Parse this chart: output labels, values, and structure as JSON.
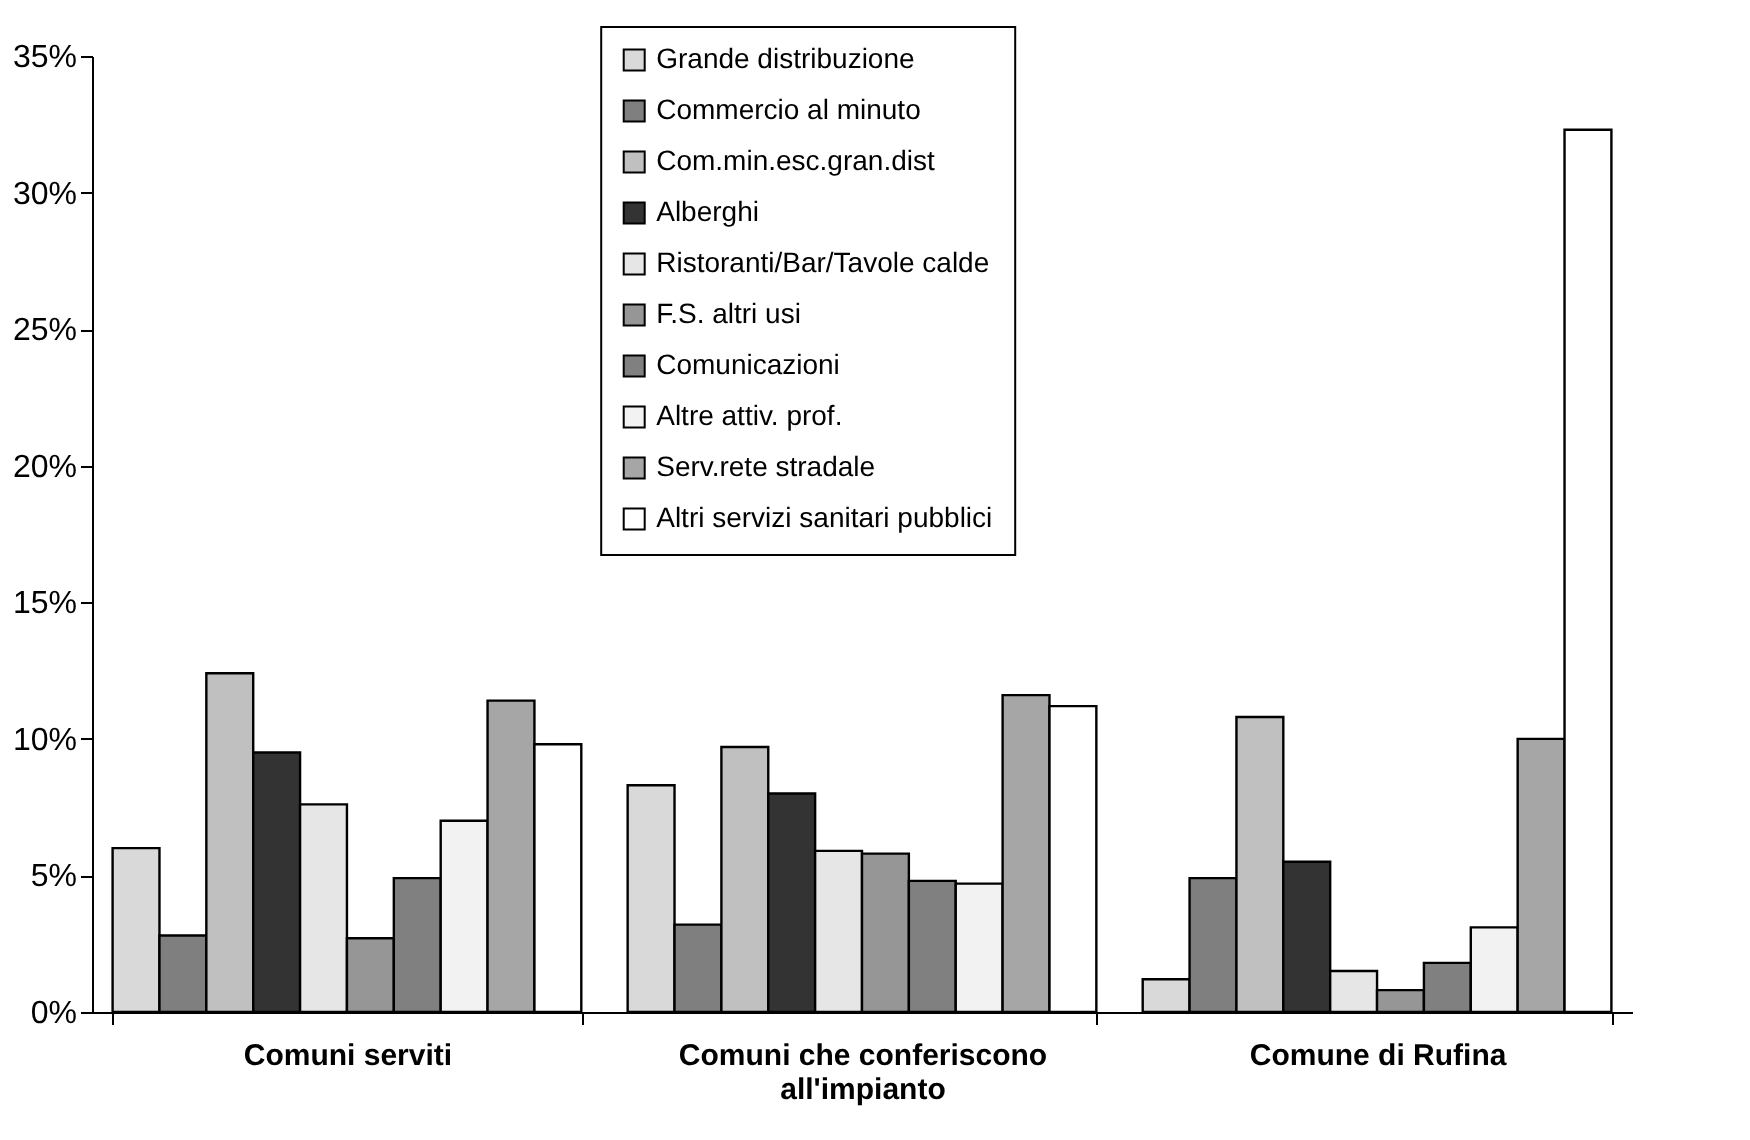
{
  "chart_data": {
    "type": "bar",
    "categories": [
      "Comuni serviti",
      "Comuni che conferiscono all'impianto",
      "Comune di Rufina"
    ],
    "series": [
      {
        "name": "Grande distribuzione",
        "color": "#d9d9d9",
        "values": [
          6.0,
          8.3,
          1.2
        ]
      },
      {
        "name": "Commercio al minuto",
        "color": "#7f7f7f",
        "values": [
          2.8,
          3.2,
          4.9
        ]
      },
      {
        "name": "Com.min.esc.gran.dist",
        "color": "#c0c0c0",
        "values": [
          12.4,
          9.7,
          10.8
        ]
      },
      {
        "name": "Alberghi",
        "color": "#333333",
        "values": [
          9.5,
          8.0,
          5.5
        ]
      },
      {
        "name": "Ristoranti/Bar/Tavole calde",
        "color": "#e6e6e6",
        "values": [
          7.6,
          5.9,
          1.5
        ]
      },
      {
        "name": "F.S. altri usi",
        "color": "#969696",
        "values": [
          2.7,
          5.8,
          0.8
        ]
      },
      {
        "name": "Comunicazioni",
        "color": "#808080",
        "values": [
          4.9,
          4.8,
          1.8
        ]
      },
      {
        "name": "Altre attiv. prof.",
        "color": "#f2f2f2",
        "values": [
          7.0,
          4.7,
          3.1
        ]
      },
      {
        "name": "Serv.rete stradale",
        "color": "#a6a6a6",
        "values": [
          11.4,
          11.6,
          10.0
        ]
      },
      {
        "name": "Altri servizi sanitari pubblici",
        "color": "#ffffff",
        "values": [
          9.8,
          11.2,
          32.3
        ]
      }
    ],
    "ylim": [
      0,
      35
    ],
    "yticks": [
      {
        "value": 0,
        "label": "0%"
      },
      {
        "value": 5,
        "label": "5%"
      },
      {
        "value": 10,
        "label": "10%"
      },
      {
        "value": 15,
        "label": "15%"
      },
      {
        "value": 20,
        "label": "20%"
      },
      {
        "value": 25,
        "label": "25%"
      },
      {
        "value": 30,
        "label": "30%"
      },
      {
        "value": 35,
        "label": "35%"
      }
    ],
    "legend": "top"
  }
}
